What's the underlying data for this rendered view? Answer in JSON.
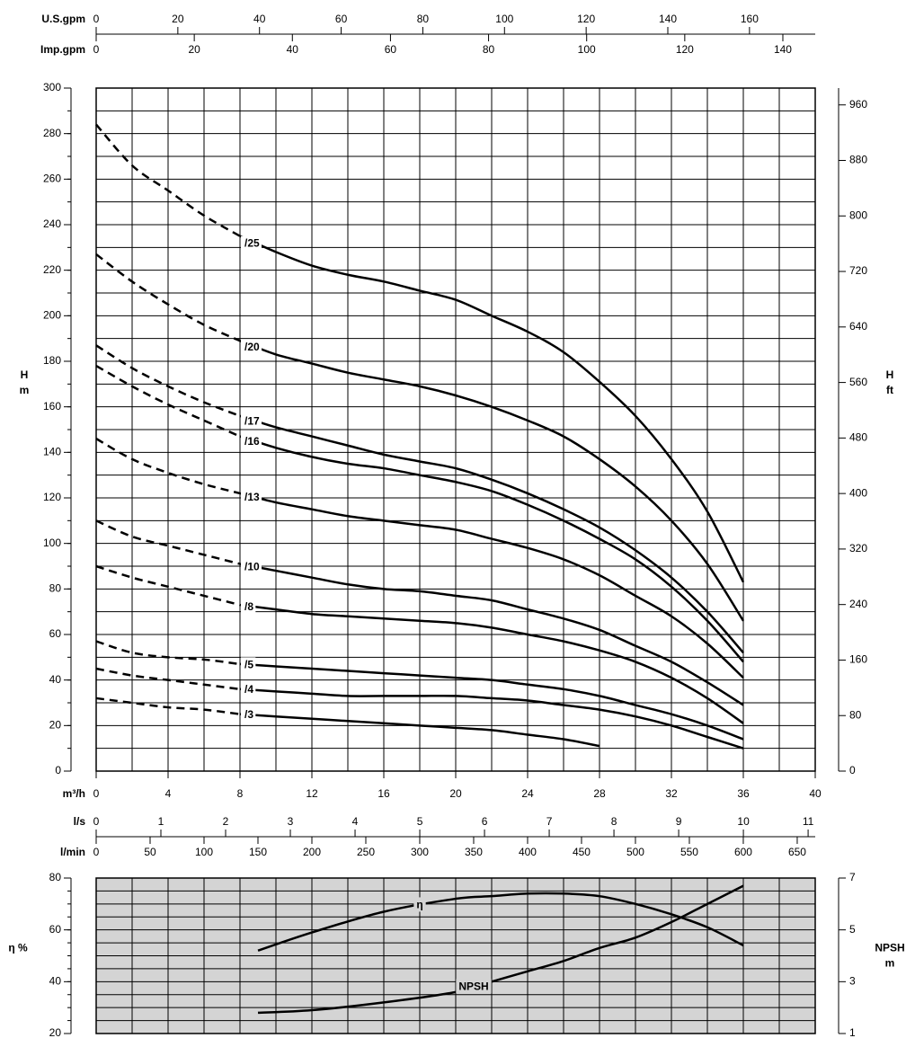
{
  "chart_data": [
    {
      "type": "line",
      "xlabel": "m³/h",
      "xlim": [
        0,
        40
      ],
      "xticks": [
        0,
        4,
        8,
        12,
        16,
        20,
        24,
        28,
        32,
        36,
        40
      ],
      "xgrid": [
        0,
        2,
        4,
        6,
        8,
        10,
        12,
        14,
        16,
        18,
        20,
        22,
        24,
        26,
        28,
        30,
        32,
        34,
        36,
        38,
        40
      ],
      "ylabel": [
        "H",
        "m"
      ],
      "ylim": [
        0,
        300
      ],
      "yticks": [
        0,
        20,
        40,
        60,
        80,
        100,
        120,
        140,
        160,
        180,
        200,
        220,
        240,
        260,
        280,
        300
      ],
      "ygrid": [
        0,
        10,
        20,
        30,
        40,
        50,
        60,
        70,
        80,
        90,
        100,
        110,
        120,
        130,
        140,
        150,
        160,
        170,
        180,
        190,
        200,
        210,
        220,
        230,
        240,
        250,
        260,
        270,
        280,
        290,
        300
      ],
      "y2label": [
        "H",
        "ft"
      ],
      "y2lim": [
        0,
        984.25
      ],
      "y2ticks": [
        0,
        80,
        160,
        240,
        320,
        400,
        480,
        560,
        640,
        720,
        800,
        880,
        960
      ],
      "top_axes": [
        {
          "label": "U.S.gpm",
          "lim": [
            0,
            176.1
          ],
          "ticks": [
            0,
            20,
            40,
            60,
            80,
            100,
            120,
            140,
            160
          ]
        },
        {
          "label": "Imp.gpm",
          "lim": [
            0,
            146.6
          ],
          "ticks": [
            0,
            20,
            40,
            60,
            80,
            100,
            120,
            140
          ]
        }
      ],
      "dashed_x_range": [
        0,
        8
      ],
      "x": [
        0,
        2,
        4,
        6,
        8,
        10,
        12,
        14,
        16,
        18,
        20,
        22,
        24,
        26,
        28,
        30,
        32,
        34,
        36
      ],
      "series": [
        {
          "name": "/25",
          "color": "#000000",
          "values": [
            284,
            266,
            255,
            244,
            235,
            228,
            222,
            218,
            215,
            211,
            207,
            200,
            193,
            184,
            171,
            156,
            137,
            114,
            83
          ]
        },
        {
          "name": "/20",
          "color": "#000000",
          "values": [
            227,
            215,
            205,
            196,
            189,
            183,
            179,
            175,
            172,
            169,
            165,
            160,
            154,
            147,
            137,
            125,
            110,
            91,
            66
          ]
        },
        {
          "name": "/17",
          "color": "#000000",
          "values": [
            187,
            177,
            169,
            162,
            156,
            151,
            147,
            143,
            139,
            136,
            133,
            128,
            122,
            115,
            107,
            97,
            85,
            70,
            52
          ]
        },
        {
          "name": "/16",
          "color": "#000000",
          "values": [
            178,
            169,
            161,
            154,
            147,
            142,
            138,
            135,
            133,
            130,
            127,
            123,
            117,
            110,
            102,
            93,
            81,
            66,
            48
          ]
        },
        {
          "name": "/13",
          "color": "#000000",
          "values": [
            146,
            137,
            131,
            126,
            122,
            118,
            115,
            112,
            110,
            108,
            106,
            102,
            98,
            93,
            86,
            77,
            68,
            56,
            41
          ]
        },
        {
          "name": "/10",
          "color": "#000000",
          "values": [
            110,
            103,
            99,
            95,
            91,
            88,
            85,
            82,
            80,
            79,
            77,
            75,
            71,
            67,
            62,
            55,
            48,
            39,
            29
          ]
        },
        {
          "name": "/8",
          "color": "#000000",
          "values": [
            90,
            85,
            81,
            77,
            73,
            71,
            69,
            68,
            67,
            66,
            65,
            63,
            60,
            57,
            53,
            48,
            41,
            32,
            21
          ]
        },
        {
          "name": "/5",
          "color": "#000000",
          "values": [
            57,
            52,
            50,
            49,
            47,
            46,
            45,
            44,
            43,
            42,
            41,
            40,
            38,
            36,
            33,
            29,
            25,
            20,
            14
          ]
        },
        {
          "name": "/4",
          "color": "#000000",
          "values": [
            45,
            42,
            40,
            38,
            36,
            35,
            34,
            33,
            33,
            33,
            33,
            32,
            31,
            29,
            27,
            24,
            20,
            15,
            10
          ]
        },
        {
          "name": "/3",
          "color": "#000000",
          "values": [
            32,
            30,
            28,
            27,
            25,
            24,
            23,
            22,
            21,
            20,
            19,
            18,
            16,
            14,
            11,
            null,
            null,
            null,
            null
          ]
        }
      ]
    },
    {
      "type": "line",
      "xlim": [
        0,
        40
      ],
      "xgrid": [
        0,
        2,
        4,
        6,
        8,
        10,
        12,
        14,
        16,
        18,
        20,
        22,
        24,
        26,
        28,
        30,
        32,
        34,
        36,
        38,
        40
      ],
      "ylabel": [
        "η %"
      ],
      "ylim": [
        20,
        80
      ],
      "yticks": [
        20,
        40,
        60,
        80
      ],
      "ygrid": [
        20,
        25,
        30,
        35,
        40,
        45,
        50,
        55,
        60,
        65,
        70,
        75,
        80
      ],
      "y2label": [
        "NPSH",
        "m"
      ],
      "y2lim": [
        1,
        7
      ],
      "y2ticks": [
        1,
        3,
        5,
        7
      ],
      "top_axes": [
        {
          "label": "l/s",
          "lim": [
            0,
            11.11
          ],
          "ticks": [
            0,
            1,
            2,
            3,
            4,
            5,
            6,
            7,
            8,
            9,
            10,
            11
          ]
        },
        {
          "label": "l/min",
          "lim": [
            0,
            666.7
          ],
          "ticks": [
            0,
            50,
            100,
            150,
            200,
            250,
            300,
            350,
            400,
            450,
            500,
            550,
            600,
            650
          ]
        }
      ],
      "plot_background": "#d4d4d4",
      "x": [
        9,
        12,
        16,
        20,
        22,
        24,
        26,
        28,
        30,
        32,
        34,
        36
      ],
      "series": [
        {
          "name": "η",
          "color": "#000000",
          "values": [
            52,
            59,
            67,
            72,
            73,
            74,
            74,
            73,
            70,
            66,
            61,
            54
          ]
        },
        {
          "name": "NPSH",
          "color": "#000000",
          "axis": "y2",
          "values": [
            1.8,
            1.9,
            2.2,
            2.6,
            3.0,
            3.4,
            3.8,
            4.3,
            4.7,
            5.3,
            6.0,
            6.7
          ]
        }
      ]
    }
  ]
}
